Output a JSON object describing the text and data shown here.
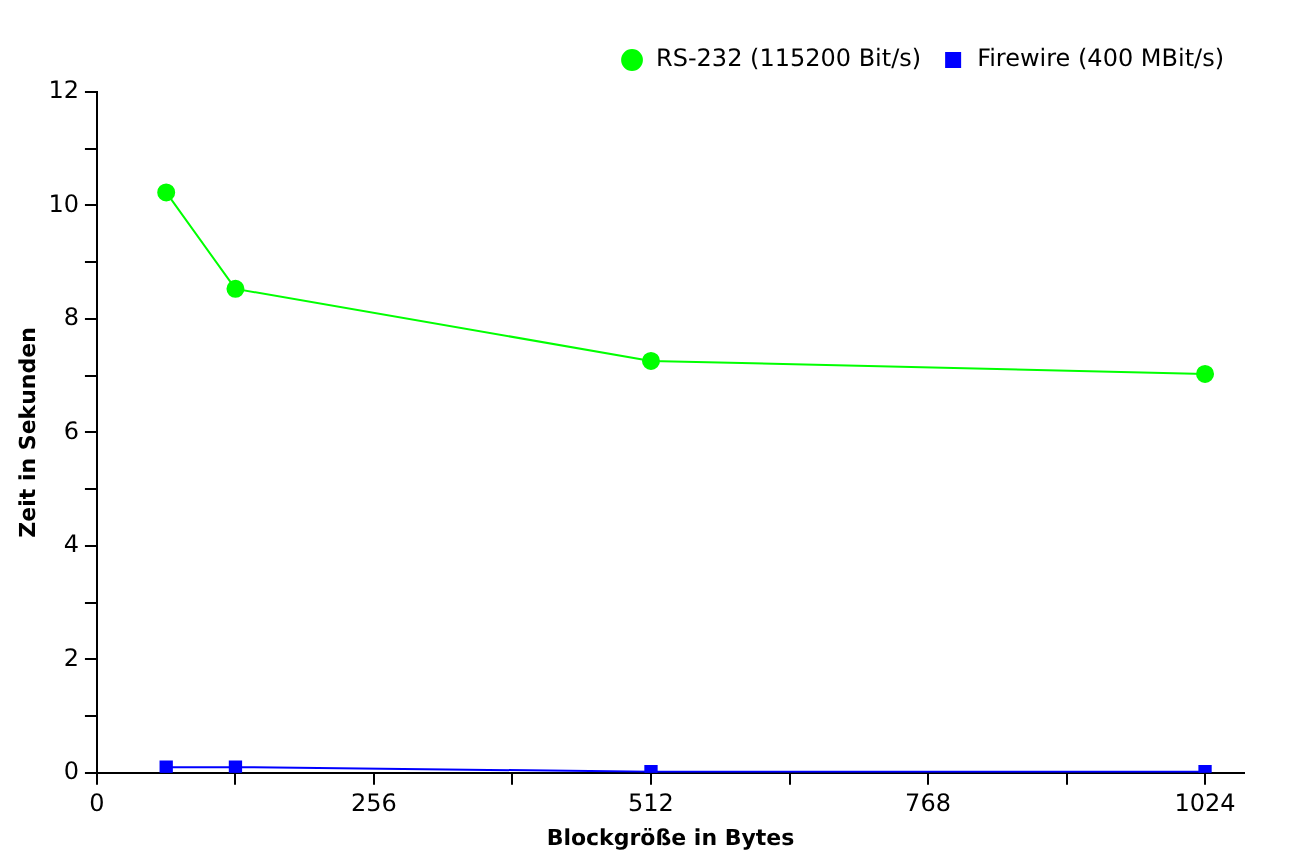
{
  "chart_data": {
    "type": "line",
    "xlabel": "Blockgröße in Bytes",
    "ylabel": "Zeit in Sekunden",
    "xlim": [
      0,
      1060
    ],
    "xticks": [
      0,
      {
        "value": 128,
        "label": null
      },
      256,
      {
        "value": 384,
        "label": null
      },
      512,
      {
        "value": 640,
        "label": null
      },
      768,
      {
        "value": 896,
        "label": null
      },
      1024
    ],
    "ylim": [
      0,
      12
    ],
    "yticks": [
      0,
      {
        "value": 1,
        "label": null
      },
      2,
      {
        "value": 3,
        "label": null
      },
      4,
      {
        "value": 5,
        "label": null
      },
      6,
      {
        "value": 7,
        "label": null
      },
      8,
      {
        "value": 9,
        "label": null
      },
      10,
      {
        "value": 11,
        "label": null
      },
      12
    ],
    "grid": false,
    "legend": "top right",
    "line_style": "solid",
    "series": [
      {
        "name": "RS-232 (115200 Bit/s)",
        "color": "#00ff00",
        "marker": "circle",
        "x": [
          64,
          128,
          512,
          1024
        ],
        "values": [
          10.23,
          8.53,
          7.26,
          7.03
        ]
      },
      {
        "name": "Firewire (400 MBit/s)",
        "color": "#0000ff",
        "marker": "square",
        "x": [
          64,
          128,
          512,
          1024
        ],
        "values": [
          0.1,
          0.1,
          0.02,
          0.02
        ]
      }
    ]
  }
}
